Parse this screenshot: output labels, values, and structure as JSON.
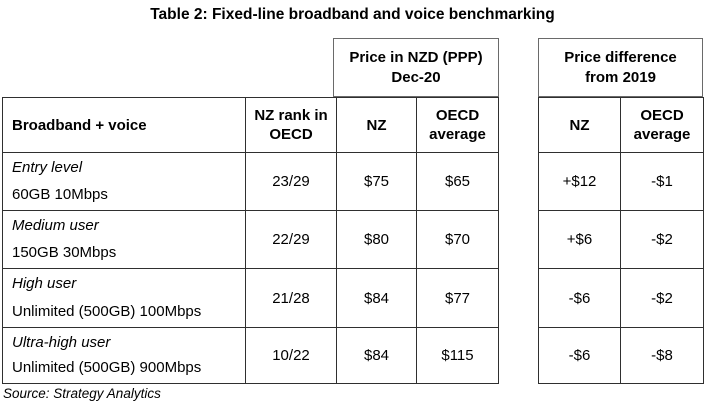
{
  "title": "Table 2: Fixed-line broadband and voice benchmarking",
  "group_boxes": {
    "price_nzd": {
      "line1": "Price in NZD (PPP)",
      "line2": "Dec-20"
    },
    "price_diff": {
      "line1": "Price difference",
      "line2": "from 2019"
    }
  },
  "main_table": {
    "header": [
      "Broadband + voice",
      "NZ rank in OECD",
      "NZ",
      "OECD average"
    ]
  },
  "diff_table": {
    "header": [
      "NZ",
      "OECD average"
    ]
  },
  "rows": [
    {
      "tier": "Entry level",
      "plan": "60GB 10Mbps",
      "rank": "23/29",
      "nz_price": "$75",
      "oecd_price": "$65",
      "diff_nz": "+$12",
      "diff_oecd": "-$1"
    },
    {
      "tier": "Medium user",
      "plan": "150GB 30Mbps",
      "rank": "22/29",
      "nz_price": "$80",
      "oecd_price": "$70",
      "diff_nz": "+$6",
      "diff_oecd": "-$2"
    },
    {
      "tier": "High user",
      "plan": "Unlimited (500GB) 100Mbps",
      "rank": "21/28",
      "nz_price": "$84",
      "oecd_price": "$77",
      "diff_nz": "-$6",
      "diff_oecd": "-$2"
    },
    {
      "tier": "Ultra-high user",
      "plan": "Unlimited (500GB) 900Mbps",
      "rank": "10/22",
      "nz_price": "$84",
      "oecd_price": "$115",
      "diff_nz": "-$6",
      "diff_oecd": "-$8"
    }
  ],
  "source": "Source: Strategy Analytics"
}
